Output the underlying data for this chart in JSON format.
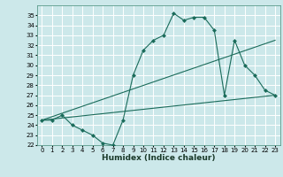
{
  "title": "",
  "xlabel": "Humidex (Indice chaleur)",
  "bg_color": "#cce8ea",
  "grid_color": "#ffffff",
  "line_color": "#1a6b5a",
  "xlim": [
    -0.5,
    23.5
  ],
  "ylim": [
    22,
    36
  ],
  "yticks": [
    22,
    23,
    24,
    25,
    26,
    27,
    28,
    29,
    30,
    31,
    32,
    33,
    34,
    35
  ],
  "xticks": [
    0,
    1,
    2,
    3,
    4,
    5,
    6,
    7,
    8,
    9,
    10,
    11,
    12,
    13,
    14,
    15,
    16,
    17,
    18,
    19,
    20,
    21,
    22,
    23
  ],
  "line1_x": [
    0,
    1,
    2,
    3,
    4,
    5,
    6,
    7,
    8,
    9,
    10,
    11,
    12,
    13,
    14,
    15,
    16,
    17,
    18,
    19,
    20,
    21,
    22,
    23
  ],
  "line1_y": [
    24.5,
    24.5,
    25.0,
    24.0,
    23.5,
    23.0,
    22.2,
    22.0,
    24.5,
    29.0,
    31.5,
    32.5,
    33.0,
    35.2,
    34.5,
    34.8,
    34.8,
    33.5,
    27.0,
    32.5,
    30.0,
    29.0,
    27.5,
    27.0
  ],
  "line2_x": [
    0,
    23
  ],
  "line2_y": [
    24.5,
    27.0
  ],
  "line3_x": [
    0,
    23
  ],
  "line3_y": [
    24.5,
    32.5
  ],
  "tick_fontsize": 5.0,
  "xlabel_fontsize": 6.5,
  "marker_size": 2.5,
  "line_width": 0.8
}
